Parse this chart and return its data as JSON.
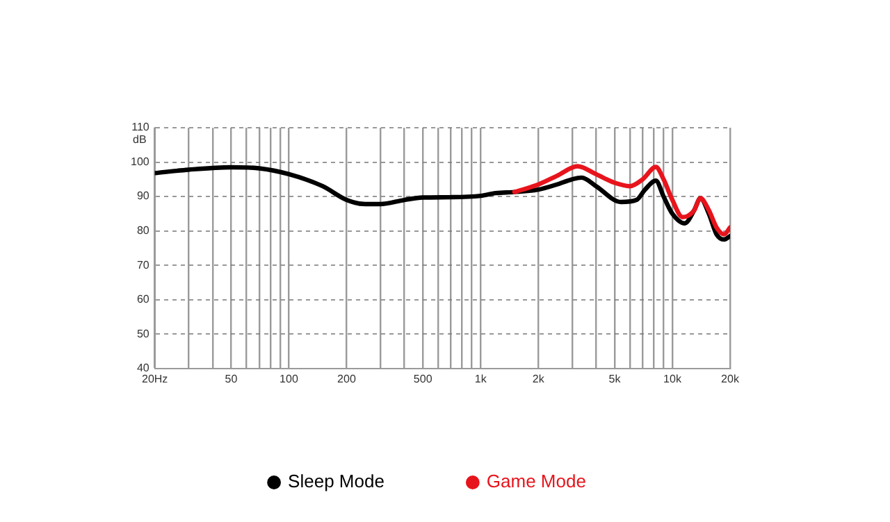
{
  "chart_data": {
    "type": "line",
    "ylabel": "dB",
    "log": "x",
    "grid": true,
    "legend": "bottom",
    "marker": "none",
    "line_style": "solid",
    "xlim": [
      20,
      20000
    ],
    "ylim": [
      40,
      110
    ],
    "yticks": [
      40,
      50,
      60,
      70,
      80,
      90,
      100,
      110
    ],
    "xticks": [
      {
        "value": 20,
        "label": "20Hz"
      },
      {
        "value": 30,
        "label": null
      },
      {
        "value": 40,
        "label": null
      },
      50,
      {
        "value": 60,
        "label": null
      },
      {
        "value": 70,
        "label": null
      },
      {
        "value": 80,
        "label": null
      },
      {
        "value": 90,
        "label": null
      },
      100,
      200,
      {
        "value": 300,
        "label": null
      },
      {
        "value": 400,
        "label": null
      },
      500,
      {
        "value": 600,
        "label": null
      },
      {
        "value": 700,
        "label": null
      },
      {
        "value": 800,
        "label": null
      },
      {
        "value": 900,
        "label": null
      },
      {
        "value": 1000,
        "label": "1k"
      },
      {
        "value": 2000,
        "label": "2k"
      },
      {
        "value": 3000,
        "label": null
      },
      {
        "value": 4000,
        "label": null
      },
      {
        "value": 5000,
        "label": "5k"
      },
      {
        "value": 6000,
        "label": null
      },
      {
        "value": 7000,
        "label": null
      },
      {
        "value": 8000,
        "label": null
      },
      {
        "value": 9000,
        "label": null
      },
      {
        "value": 10000,
        "label": "10k"
      },
      {
        "value": 20000,
        "label": "20k"
      }
    ],
    "series": [
      {
        "name": "Sleep Mode",
        "color": "#000000",
        "x": [
          20,
          30,
          50,
          70,
          100,
          150,
          200,
          250,
          300,
          400,
          500,
          700,
          1000,
          1200,
          1500,
          2000,
          2500,
          3000,
          3360,
          4000,
          5400,
          6500,
          7200,
          8200,
          9000,
          10000,
          11600,
          13000,
          14000,
          15500,
          17000,
          18600,
          20000
        ],
        "values": [
          96.8,
          97.8,
          98.5,
          98.2,
          96.5,
          93,
          89,
          87.8,
          87.8,
          89,
          89.7,
          89.8,
          90.2,
          91,
          91.3,
          92,
          93.5,
          95,
          95.5,
          93,
          88.4,
          89,
          92,
          94.6,
          90,
          85,
          82.2,
          86,
          89.5,
          85,
          79,
          77.5,
          78.5
        ]
      },
      {
        "name": "Game Mode",
        "color": "#e8141c",
        "x": [
          1500,
          2000,
          2500,
          3200,
          4000,
          5000,
          6000,
          7000,
          8200,
          9000,
          10000,
          11300,
          13000,
          14000,
          15500,
          17000,
          18600,
          20000
        ],
        "values": [
          91.3,
          93.5,
          96,
          98.8,
          96.5,
          94,
          93,
          95,
          98.6,
          95,
          89,
          84,
          86,
          89.5,
          86,
          81,
          79,
          81
        ]
      }
    ]
  }
}
